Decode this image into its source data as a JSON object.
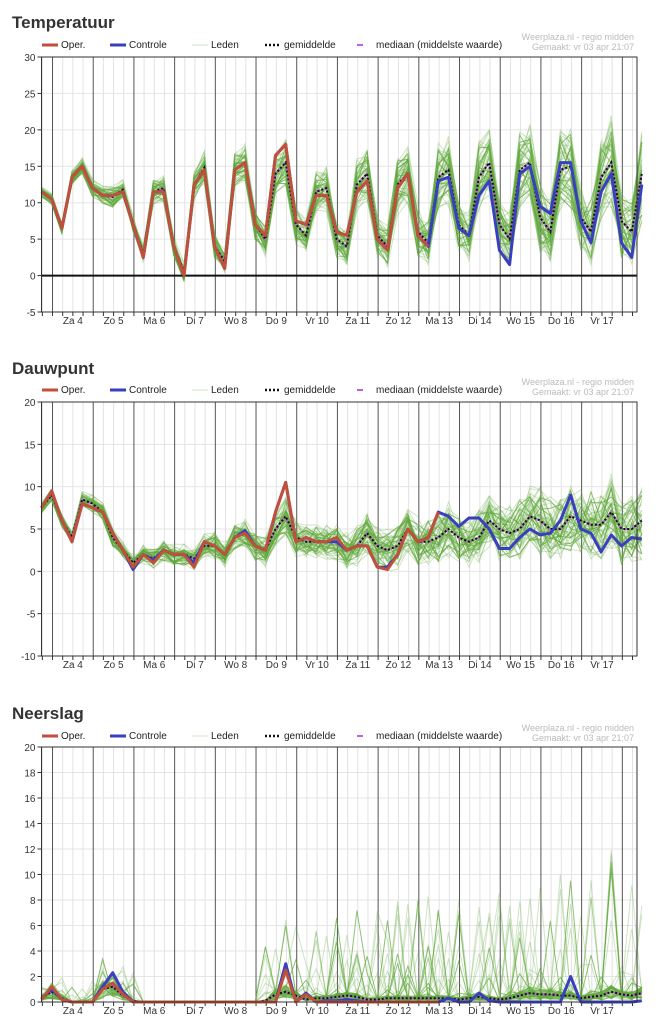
{
  "legend": {
    "oper": "Oper.",
    "control": "Controle",
    "members": "Leden",
    "mean": "gemiddelde",
    "median": "mediaan (middelste waarde)",
    "source": "Weerplaza.nl - regio midden",
    "made": "Gemaakt: vr 03 apr 21:07"
  },
  "colors": {
    "oper": "#c0503a",
    "control": "#3a3fbf",
    "members": "#5fa83a",
    "mean": "#111111",
    "median": "#c060e0"
  },
  "chart_data": [
    {
      "type": "line",
      "title": "Temperatuur",
      "ylim": [
        -5,
        30
      ],
      "yticks": [
        -5,
        0,
        5,
        10,
        15,
        20,
        25,
        30
      ],
      "step_hours": 6,
      "days": [
        "Za 4",
        "Zo 5",
        "Ma 6",
        "Di 7",
        "Wo 8",
        "Do 9",
        "Vr 10",
        "Za 11",
        "Zo 12",
        "Ma 13",
        "Di 14",
        "Wo 15",
        "Do 16",
        "Vr 17"
      ],
      "oper": [
        11.5,
        10.5,
        6.5,
        13.5,
        15,
        12,
        11,
        11,
        11.5,
        7,
        2.5,
        11.5,
        11.5,
        4,
        0,
        12.5,
        14.5,
        4,
        1,
        14.5,
        15.5,
        7,
        5.5,
        16.5,
        18,
        7.5,
        7,
        11,
        11,
        6,
        5.5,
        11.5,
        13,
        5,
        3.5,
        12,
        14,
        5.5,
        4
      ],
      "control": [
        11.5,
        10.5,
        6.5,
        13.5,
        15,
        12,
        11,
        11,
        11.5,
        7,
        2.5,
        11.5,
        11.5,
        4,
        0,
        12.5,
        14.5,
        4,
        1,
        14.5,
        15.5,
        7,
        5.5,
        16.5,
        18,
        7.5,
        7,
        11,
        11,
        6,
        5.5,
        11.5,
        13,
        5,
        3.5,
        12,
        14,
        5.5,
        4,
        13,
        13.5,
        6.5,
        5.5,
        11,
        13,
        3.5,
        1.5,
        14,
        15,
        9.5,
        8.5,
        15.5,
        15.5,
        7.5,
        4.5,
        11.5,
        14,
        4.5,
        2.5,
        12.5
      ],
      "mean": [
        11.5,
        10.5,
        6.5,
        13.5,
        15,
        12,
        11,
        10.8,
        11.8,
        7,
        3,
        11.5,
        12,
        4,
        0.5,
        12.5,
        14.8,
        4,
        2,
        14.5,
        15.5,
        7,
        5,
        14,
        15.5,
        7,
        5.5,
        11.5,
        12,
        5,
        4,
        12.5,
        14,
        5.5,
        4,
        12.5,
        14,
        6,
        4.5,
        13.5,
        14.5,
        7,
        5.5,
        13.5,
        15.5,
        7,
        5,
        14.5,
        15.5,
        8,
        6,
        14.5,
        15,
        8,
        6,
        13.5,
        15.5,
        7.5,
        6,
        14
      ],
      "member_count": 50,
      "member_spread": [
        0.6,
        5
      ],
      "zero_line": true
    },
    {
      "type": "line",
      "title": "Dauwpunt",
      "ylim": [
        -10,
        20
      ],
      "yticks": [
        -10,
        -5,
        0,
        5,
        10,
        15,
        20
      ],
      "step_hours": 6,
      "days": [
        "Za 4",
        "Zo 5",
        "Ma 6",
        "Di 7",
        "Wo 8",
        "Do 9",
        "Vr 10",
        "Za 11",
        "Zo 12",
        "Ma 13",
        "Di 14",
        "Wo 15",
        "Do 16",
        "Vr 17"
      ],
      "oper": [
        7.5,
        9.5,
        6,
        3.5,
        8,
        7.5,
        7,
        4.5,
        2.5,
        0.5,
        2,
        1,
        2.5,
        2,
        2,
        0.5,
        3.5,
        3,
        2,
        4,
        4.5,
        3,
        2.5,
        7,
        10.5,
        3.5,
        4,
        3.5,
        3.5,
        4,
        2.5,
        3,
        3,
        0.5,
        0.2,
        2,
        5,
        3.5,
        4,
        7
      ],
      "control": [
        7.5,
        9.5,
        6,
        3.5,
        8,
        7.5,
        7,
        4.5,
        2.5,
        0.2,
        2,
        1.3,
        2.5,
        2,
        2,
        1,
        3.5,
        3,
        2,
        4,
        4.8,
        3,
        2.5,
        7,
        10.5,
        3.5,
        4,
        3.5,
        3.5,
        3.5,
        2.5,
        3,
        3,
        0.5,
        0.5,
        2,
        5,
        3.5,
        4,
        7,
        6.5,
        5.3,
        6.3,
        6.3,
        5,
        2.7,
        2.7,
        4,
        5,
        4.3,
        4.5,
        6,
        9,
        5,
        4.5,
        2.3,
        4.3,
        3,
        4,
        3.8
      ],
      "mean": [
        7.5,
        9,
        6,
        4,
        8.5,
        8,
        7,
        4,
        2.5,
        1,
        2,
        1.5,
        2.5,
        2,
        2,
        1.5,
        3,
        3,
        2,
        4,
        4.5,
        3,
        2.5,
        5,
        6.5,
        4,
        3.5,
        3.5,
        3.5,
        3.5,
        2.5,
        3,
        4.5,
        3,
        2.5,
        3,
        5,
        3.5,
        3.5,
        4,
        5,
        4,
        3.5,
        4,
        6,
        5,
        4.5,
        5,
        6.5,
        6,
        5,
        5,
        6.5,
        6,
        5.5,
        5.5,
        7,
        5,
        5,
        6
      ],
      "member_count": 50,
      "member_spread": [
        0.6,
        4.5
      ],
      "zero_line": false
    },
    {
      "type": "line",
      "title": "Neerslag",
      "ylim": [
        0,
        20
      ],
      "yticks": [
        0,
        2,
        4,
        6,
        8,
        10,
        12,
        14,
        16,
        18,
        20
      ],
      "step_hours": 6,
      "days": [
        "Za 4",
        "Zo 5",
        "Ma 6",
        "Di 7",
        "Wo 8",
        "Do 9",
        "Vr 10",
        "Za 11",
        "Zo 12",
        "Ma 13",
        "Di 14",
        "Wo 15",
        "Do 16",
        "Vr 17"
      ],
      "oper": [
        0.2,
        1.2,
        0.2,
        0,
        0,
        0,
        1,
        1.5,
        0.6,
        0,
        0,
        0,
        0,
        0,
        0,
        0,
        0,
        0,
        0,
        0,
        0,
        0,
        0,
        0,
        2.5,
        0,
        0.6,
        0,
        0,
        0,
        0,
        0,
        0,
        0,
        0,
        0,
        0,
        0,
        0,
        0
      ],
      "control": [
        0.3,
        1,
        0.2,
        0,
        0,
        0,
        1.2,
        2.3,
        0.8,
        0,
        0,
        0,
        0,
        0,
        0,
        0,
        0,
        0,
        0,
        0,
        0,
        0,
        0,
        0,
        3,
        0,
        0.7,
        0,
        0.1,
        0.1,
        0.2,
        0.1,
        0,
        0,
        0,
        0,
        0,
        0,
        0,
        0,
        0.3,
        0,
        0,
        0.7,
        0.1,
        0,
        0,
        0,
        0,
        0,
        0,
        0,
        2,
        0,
        0,
        0,
        0,
        0,
        0,
        0.1
      ],
      "mean": [
        0.3,
        0.8,
        0.3,
        0,
        0,
        0,
        1,
        1.2,
        0.5,
        0.1,
        0,
        0,
        0,
        0,
        0,
        0,
        0,
        0,
        0,
        0,
        0,
        0,
        0.1,
        0.6,
        0.8,
        0.5,
        0.2,
        0.3,
        0.3,
        0.4,
        0.5,
        0.4,
        0.2,
        0.2,
        0.3,
        0.3,
        0.3,
        0.3,
        0.3,
        0.3,
        0.3,
        0.2,
        0.3,
        0.4,
        0.3,
        0.2,
        0.3,
        0.5,
        0.7,
        0.6,
        0.6,
        0.5,
        0.5,
        0.3,
        0.4,
        0.5,
        0.8,
        0.6,
        0.5,
        0.7
      ],
      "member_count": 50,
      "member_spread": [
        0.3,
        3
      ],
      "zero_line": false
    }
  ]
}
